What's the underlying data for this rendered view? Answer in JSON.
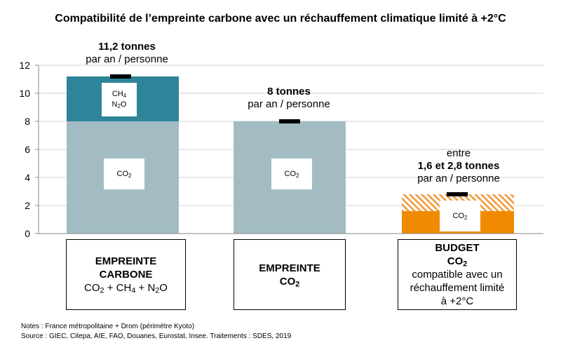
{
  "title": "Compatibilité de l’empreinte carbone avec un réchauffement climatique limité à +2°C",
  "chart_data": {
    "type": "bar",
    "ylim": [
      0,
      12
    ],
    "yticks": [
      0,
      2,
      4,
      6,
      8,
      10,
      12
    ],
    "grid": true,
    "categories": [
      "EMPREINTE CARBONE",
      "EMPREINTE CO2",
      "BUDGET CO2"
    ],
    "series": [
      {
        "name": "CO2",
        "values": [
          8.0,
          8.0,
          1.6
        ]
      },
      {
        "name": "CH4 N2O",
        "values": [
          3.2,
          0,
          0
        ]
      }
    ],
    "range_segment": {
      "category": "BUDGET CO2",
      "from": 1.6,
      "to": 2.8
    },
    "totals": [
      11.2,
      8.0,
      2.8
    ],
    "colors": {
      "co2_grey": "#a3bcc4",
      "ghg_teal": "#2e8499",
      "budget_orange": "#f08a00",
      "hatch_orange": "#f29a3a"
    }
  },
  "annotations": {
    "bar1": {
      "value": "11,2 tonnes",
      "unit": "par an / personne"
    },
    "bar2": {
      "value": "8 tonnes",
      "unit": "par an / personne"
    },
    "bar3": {
      "prefix": "entre",
      "value": "1,6 et 2,8 tonnes",
      "unit": "par an / personne"
    }
  },
  "labels": {
    "co2": "CO",
    "sub2": "2",
    "ch4": "CH",
    "sub4": "4",
    "n2o_n": "N",
    "n2o_o": "O",
    "plus": " + "
  },
  "categories_text": {
    "cat1": {
      "line1": "EMPREINTE",
      "line2": "CARBONE"
    },
    "cat2": {
      "line1": "EMPREINTE",
      "line2": "CO"
    },
    "cat3": {
      "line1": "BUDGET",
      "line2": "CO",
      "line3": "compatible avec un",
      "line4": "réchauffement limité",
      "line5": "à +2°C"
    }
  },
  "notes": {
    "note": "Notes : France métropolitaine + Drom (périmètre Kyoto)",
    "source": "Source : GIEC, Citepa, AIE, FAO, Douanes, Eurostat, Insee. Traitements : SDES, 2019"
  }
}
